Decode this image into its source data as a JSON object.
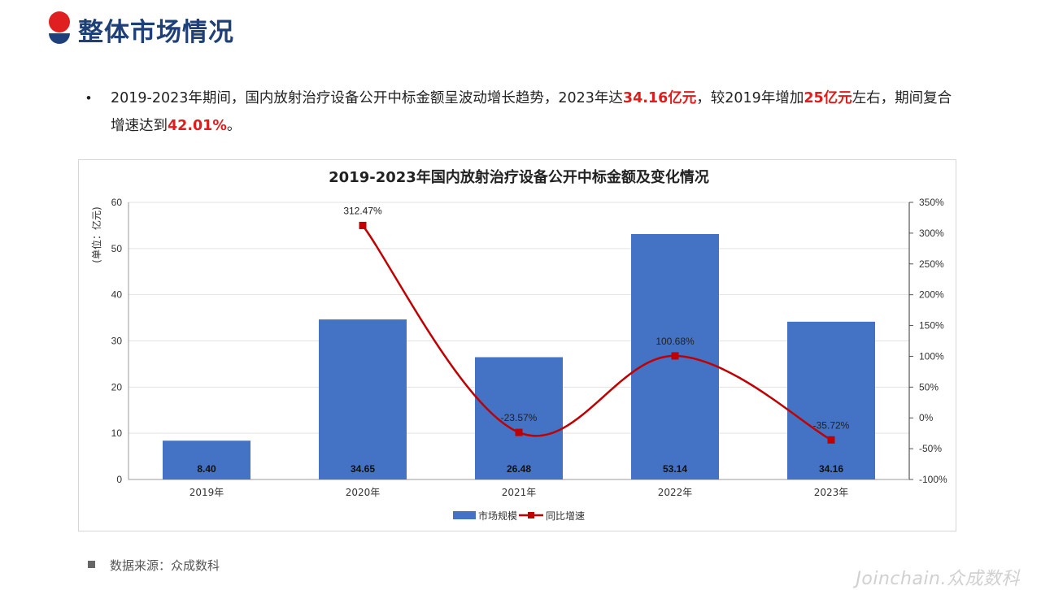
{
  "header": {
    "title": "整体市场情况"
  },
  "summary": {
    "bullet": "•",
    "parts": [
      {
        "text": "2019-2023年期间，国内放射治疗设备公开中标金额呈波动增长趋势，2023年达",
        "hl": false
      },
      {
        "text": "34.16亿元",
        "hl": true
      },
      {
        "text": "，较2019年增加",
        "hl": false
      },
      {
        "text": "25亿元",
        "hl": true
      },
      {
        "text": "左右，期间复合增速达到",
        "hl": false
      },
      {
        "text": "42.01%",
        "hl": true
      },
      {
        "text": "。",
        "hl": false
      }
    ]
  },
  "chart_data": {
    "type": "bar",
    "title": "2019-2023年国内放射治疗设备公开中标金额及变化情况",
    "ylabel": "(单位：亿元)",
    "categories": [
      "2019年",
      "2020年",
      "2021年",
      "2022年",
      "2023年"
    ],
    "series": [
      {
        "name": "市场规模",
        "type": "bar",
        "axis": "left",
        "values": [
          8.4,
          34.65,
          26.48,
          53.14,
          34.16
        ],
        "labels": [
          "8.40",
          "34.65",
          "26.48",
          "53.14",
          "34.16"
        ],
        "color": "#4472c4"
      },
      {
        "name": "同比增速",
        "type": "line",
        "axis": "right",
        "values": [
          null,
          312.47,
          -23.57,
          100.68,
          -35.72
        ],
        "labels": [
          "",
          "312.47%",
          "-23.57%",
          "100.68%",
          "-35.72%"
        ],
        "color": "#c00000"
      }
    ],
    "ylim_left": [
      0,
      60
    ],
    "yticks_left": [
      "0",
      "10",
      "20",
      "30",
      "40",
      "50",
      "60"
    ],
    "ylim_right": [
      -100,
      350
    ],
    "yticks_right": [
      "-100%",
      "-50%",
      "0%",
      "50%",
      "100%",
      "150%",
      "200%",
      "250%",
      "300%",
      "350%"
    ],
    "grid": true,
    "legend": "bottom"
  },
  "footer": {
    "source": "数据来源：众成数科",
    "brand": "Joinchain.众成数科"
  },
  "colors": {
    "accent_red": "#e01c1c",
    "title_blue": "#1e3f78",
    "bar_blue": "#4472c4",
    "line_red": "#c00000"
  }
}
